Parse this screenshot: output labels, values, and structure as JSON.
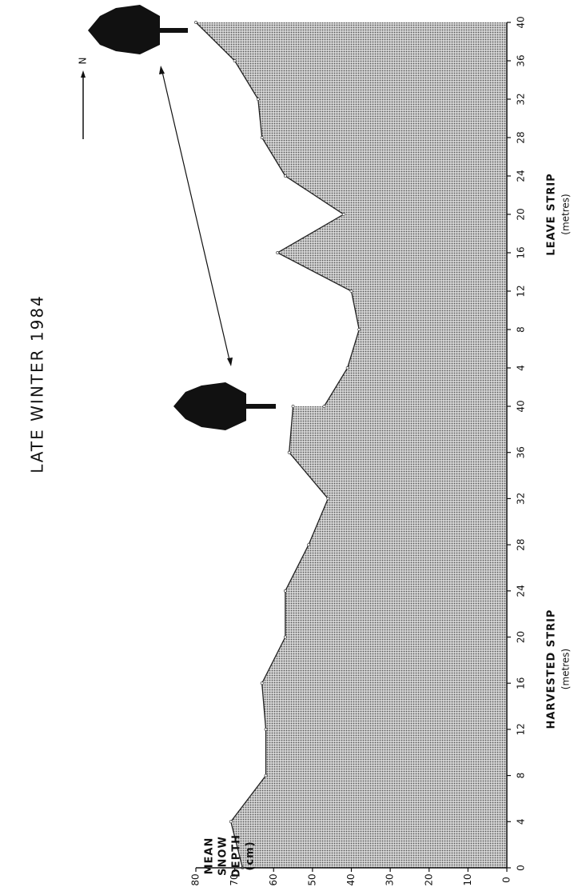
{
  "chart_data": {
    "type": "area",
    "title": "LATE WINTER 1984",
    "y_label": [
      "MEAN",
      "SNOW",
      "DEPTH",
      "(cm)"
    ],
    "north_label": "N",
    "color": "#9a9a9a",
    "ylim": [
      0,
      80
    ],
    "yticks": [
      0,
      10,
      20,
      30,
      40,
      50,
      60,
      70,
      80
    ],
    "series": [
      {
        "name": "HARVESTED STRIP",
        "unit": "(metres)",
        "xlim": [
          0,
          40
        ],
        "xticks": [
          0,
          4,
          8,
          12,
          16,
          20,
          24,
          28,
          32,
          36,
          40
        ],
        "x": [
          0,
          4,
          8,
          12,
          16,
          20,
          24,
          28,
          32,
          36,
          40
        ],
        "values": [
          68,
          71,
          62,
          62,
          63,
          57,
          57,
          51,
          46,
          56,
          55
        ]
      },
      {
        "name": "LEAVE STRIP",
        "unit": "(metres)",
        "xlim": [
          0,
          40
        ],
        "xticks": [
          4,
          8,
          12,
          16,
          20,
          24,
          28,
          32,
          36,
          40
        ],
        "x": [
          0,
          4,
          8,
          12,
          16,
          20,
          24,
          28,
          32,
          36,
          40
        ],
        "values": [
          47,
          41,
          38,
          40,
          59,
          42,
          57,
          63,
          64,
          70,
          80
        ]
      }
    ]
  }
}
